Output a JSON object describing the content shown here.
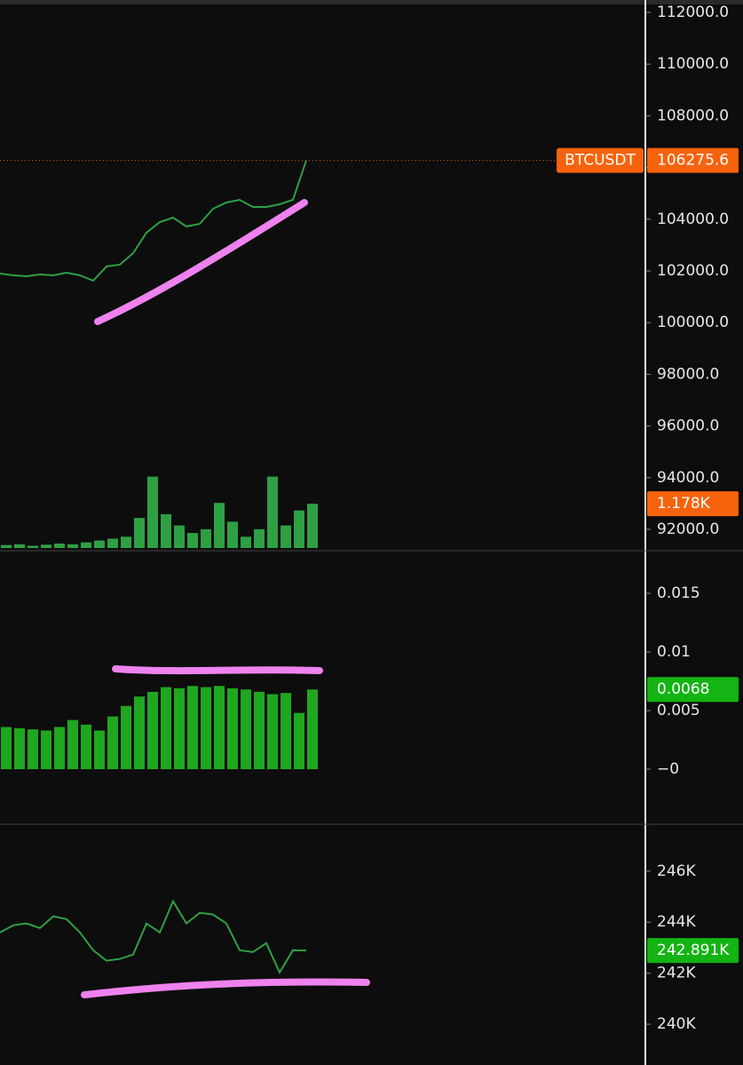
{
  "chart_data": [
    {
      "type": "line",
      "ylim": [
        91175,
        112481
      ],
      "yticks": [
        {
          "value": 112000,
          "label": "112000.0"
        },
        {
          "value": 110000,
          "label": "110000.0"
        },
        {
          "value": 108000,
          "label": "108000.0"
        },
        {
          "value": 106000,
          "label": "106000.0"
        },
        {
          "value": 104000,
          "label": "104000.0"
        },
        {
          "value": 102000,
          "label": "102000.0"
        },
        {
          "value": 100000,
          "label": "100000.0"
        },
        {
          "value": 98000,
          "label": "98000.0"
        },
        {
          "value": 96000,
          "label": "96000.0"
        },
        {
          "value": 94000,
          "label": "94000.0"
        },
        {
          "value": 92000,
          "label": "92000.0"
        }
      ],
      "y2lim": [
        0,
        3
      ],
      "y2ticks": [],
      "series": [
        {
          "name": "BTCUSDT",
          "color": "#2ea043",
          "label_color": "#f7630c",
          "values": [
            101897,
            101828,
            101794,
            101863,
            101828,
            101931,
            101828,
            101622,
            102172,
            102241,
            102687,
            103478,
            103890,
            104062,
            103718,
            103821,
            104405,
            104646,
            104749,
            104474,
            104474,
            104577,
            104749,
            106275.6
          ]
        },
        {
          "axis": "y2",
          "color": "#2ea043",
          "label_color": "#f7630c",
          "values": [
            0.08,
            0.1,
            0.06,
            0.09,
            0.12,
            0.1,
            0.15,
            0.2,
            0.25,
            0.3,
            0.8,
            1.9,
            0.9,
            0.6,
            0.4,
            0.5,
            1.2,
            0.7,
            0.3,
            0.5,
            1.9,
            0.6,
            1.0,
            1.178
          ],
          "value_labels": {
            "23": "1.178K"
          }
        }
      ]
    },
    {
      "type": "bar",
      "ylim": [
        -0.0047,
        0.01864
      ],
      "yticks": [
        0.015,
        0.01,
        0.005,
        {
          "value": 0,
          "label": "−0"
        }
      ],
      "series": [
        {
          "color": "#1fa71f",
          "label_color": "#13b413",
          "values": [
            0.0036,
            0.0035,
            0.0034,
            0.0033,
            0.0036,
            0.0042,
            0.0038,
            0.0033,
            0.0045,
            0.0054,
            0.0062,
            0.0066,
            0.007,
            0.0069,
            0.0071,
            0.007,
            0.0071,
            0.0069,
            0.0068,
            0.0066,
            0.0064,
            0.0065,
            0.0048,
            0.0068
          ]
        }
      ]
    },
    {
      "type": "line",
      "ylim": [
        238.4,
        247.84
      ],
      "yticks": [
        {
          "value": 246,
          "label": "246K"
        },
        {
          "value": 244,
          "label": "244K"
        },
        {
          "value": 242,
          "label": "242K"
        },
        {
          "value": 240,
          "label": "240K"
        }
      ],
      "series": [
        {
          "color": "#2ea043",
          "label_color": "#13b413",
          "values": [
            243.6,
            243.88,
            243.95,
            243.77,
            244.23,
            244.12,
            243.6,
            242.9,
            242.49,
            242.56,
            242.73,
            243.95,
            243.6,
            244.82,
            243.95,
            244.37,
            244.3,
            243.95,
            242.9,
            242.83,
            243.18,
            242.03,
            242.9,
            242.891
          ],
          "value_labels": {
            "23": "242.891K"
          }
        }
      ]
    }
  ]
}
